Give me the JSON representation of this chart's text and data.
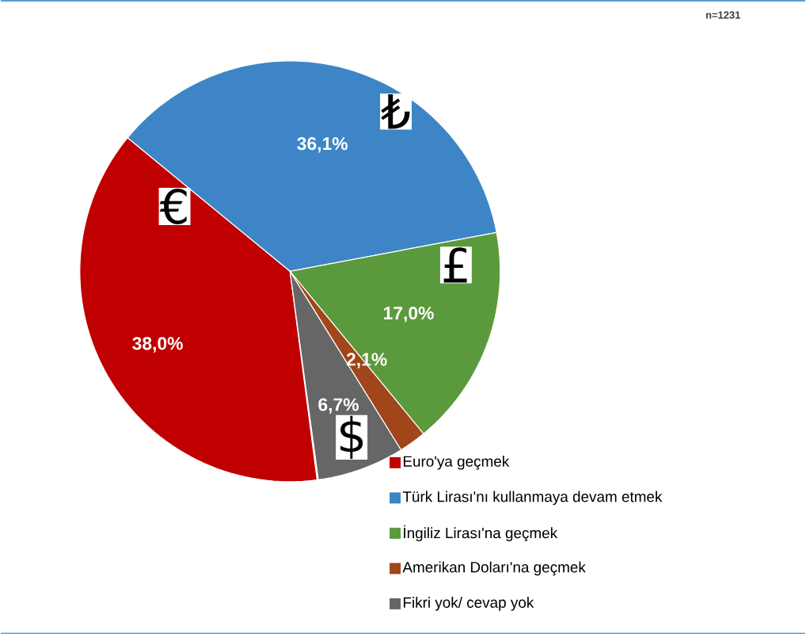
{
  "chart_data": {
    "type": "pie",
    "categories": [
      "Euro'ya geçmek",
      "Türk Lirası'nı kullanmaya devam etmek",
      "İngiliz Lirası'na geçmek",
      "Amerikan Doları'na geçmek",
      "Fikri yok/ cevap yok"
    ],
    "values": [
      38.0,
      36.1,
      17.0,
      2.1,
      6.7
    ],
    "value_labels": [
      "38,0%",
      "36,1%",
      "17,0%",
      "2,1%",
      "6,7%"
    ],
    "colors": [
      "#c00000",
      "#3d85c6",
      "#5b9a3c",
      "#a0461a",
      "#666666"
    ],
    "legend": "bottom right",
    "annotations": [
      "n=1231",
      "€",
      "₺",
      "£",
      "$"
    ]
  }
}
